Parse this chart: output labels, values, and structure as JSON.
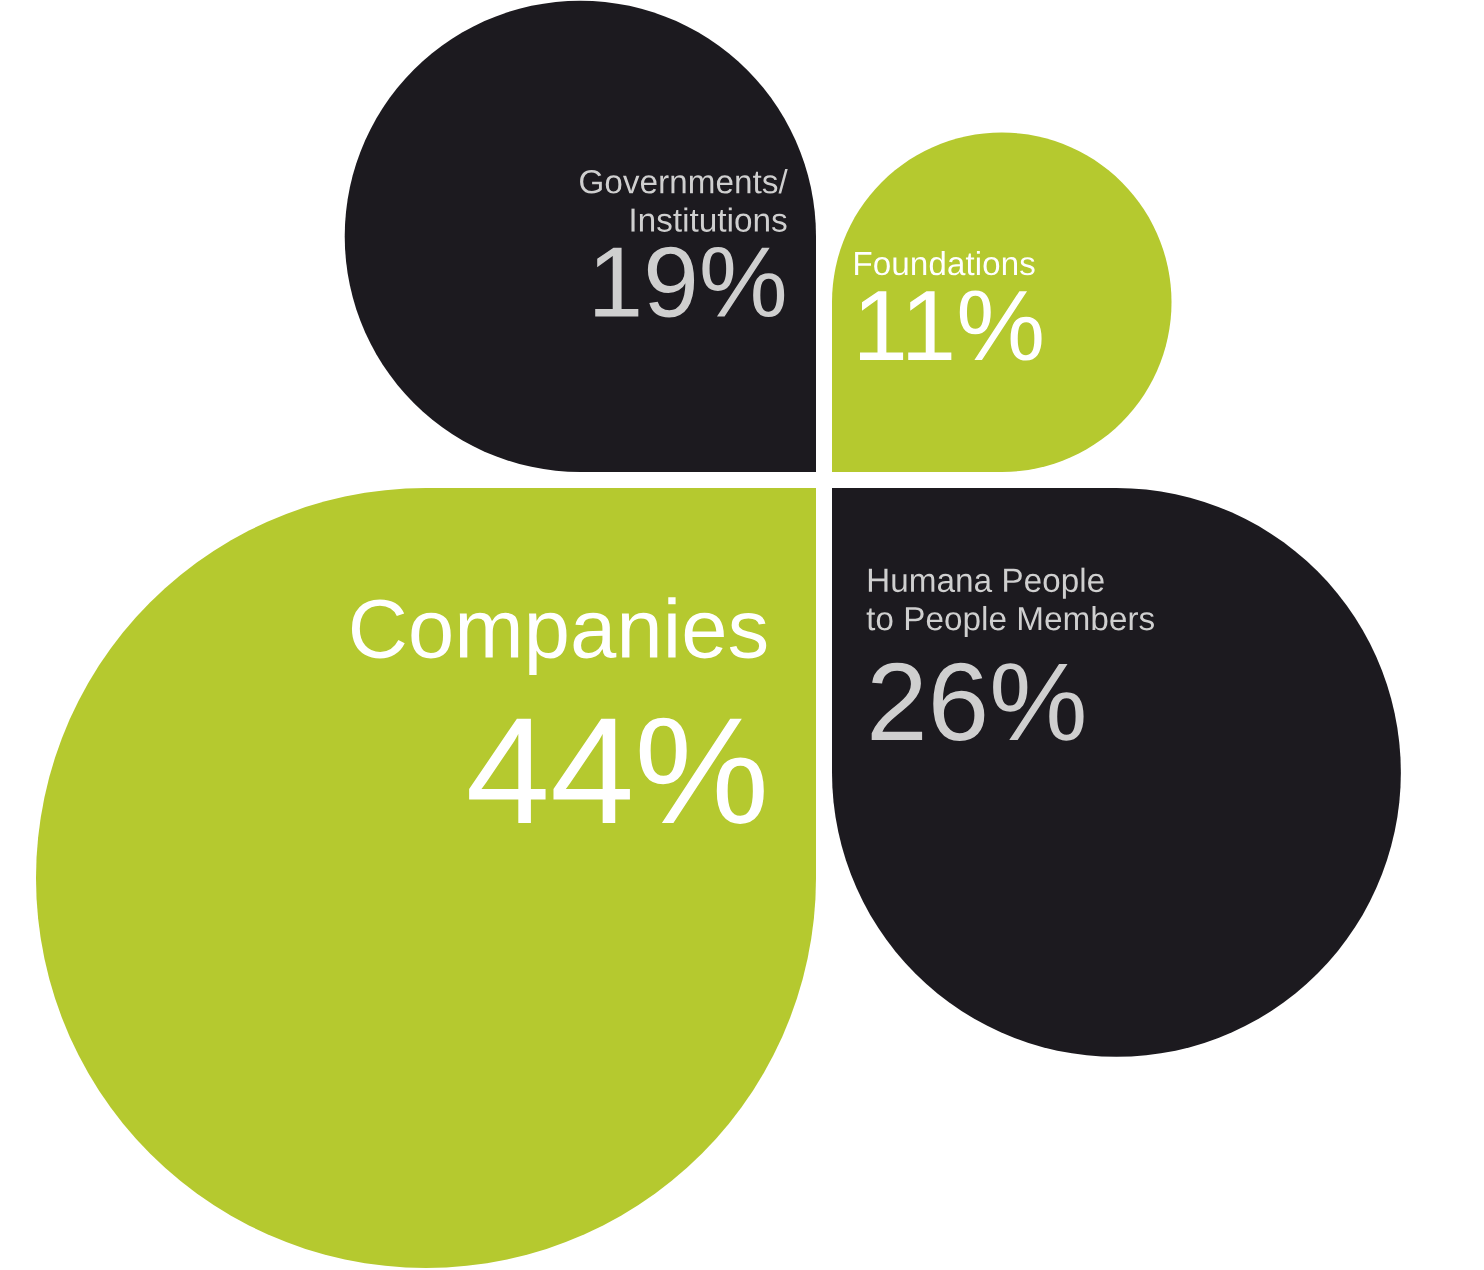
{
  "chart_data": {
    "type": "other",
    "categories": [
      "Governments/\nInstitutions",
      "Foundations",
      "Companies",
      "Humana People\nto People Members"
    ],
    "values": [
      19,
      11,
      44,
      26
    ],
    "value_labels": [
      "19%",
      "11%",
      "44%",
      "26%"
    ],
    "colors": [
      "#1c1a1f",
      "#b5c92f",
      "#b5c92f",
      "#1c1a1f"
    ]
  }
}
